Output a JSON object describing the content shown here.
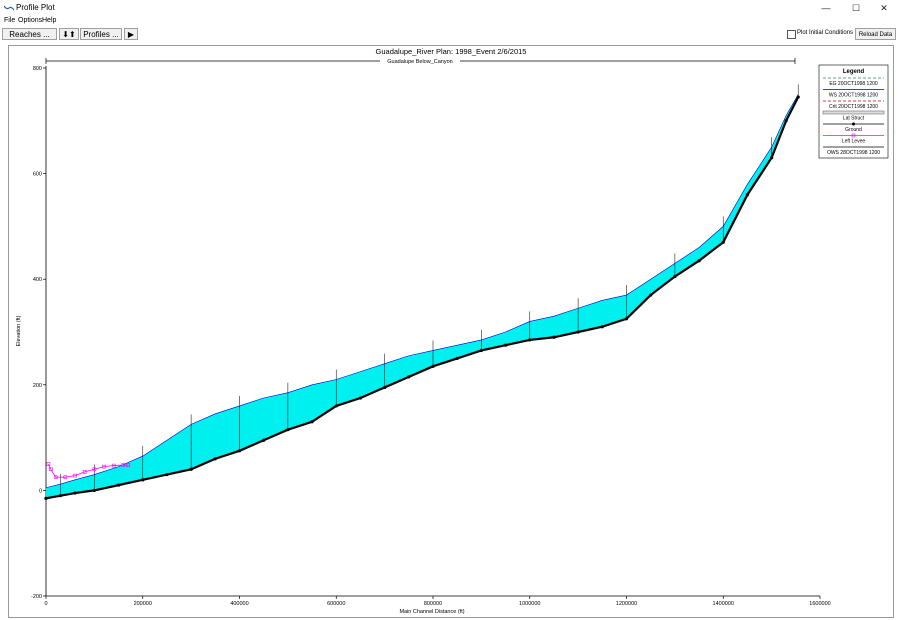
{
  "window": {
    "title": "Profile Plot",
    "minimize": "—",
    "maximize": "☐",
    "close": "✕",
    "icon": "profile-plot-icon"
  },
  "menu": [
    "File",
    "Options",
    "Help"
  ],
  "toolbar": {
    "reaches_label": "Reaches ...",
    "profiles_label": "Profiles ...",
    "arrows_label": "⬇⬆",
    "play_label": "▶",
    "plot_initial_label": "Plot Initial Conditions",
    "plot_initial_checked": false,
    "reload_label": "Reload Data"
  },
  "plot": {
    "header": "Guadalupe_River       Plan: 1998_Event     2/6/2015",
    "reach_label": "Guadalupe Below_Canyon"
  },
  "legend": {
    "title": "Legend",
    "items": [
      {
        "label": "EG  20OCT1998 1200",
        "color": "#2e8b57",
        "style": "dash"
      },
      {
        "label": "WS  20OCT1998 1200",
        "color": "#0000cc",
        "style": "line"
      },
      {
        "label": "Crit  20OCT1998 1200",
        "color": "#cc0000",
        "style": "dash"
      },
      {
        "label": "Lat Struct",
        "color": "#888888",
        "style": "bar"
      },
      {
        "label": "Ground",
        "color": "#000000",
        "style": "dots"
      },
      {
        "label": "Left Levee",
        "color": "#ff00ff",
        "style": "square"
      },
      {
        "label": "OWS  28OCT1998 1200",
        "color": "#000000",
        "style": "line"
      }
    ]
  },
  "chart_data": {
    "type": "line",
    "title": "Guadalupe_River       Plan: 1998_Event     2/6/2015",
    "xlabel": "Main Channel Distance (ft)",
    "ylabel": "Elevation (ft)",
    "xlim": [
      0,
      1600000
    ],
    "ylim": [
      -200,
      800
    ],
    "xticks": [
      0,
      200000,
      400000,
      600000,
      800000,
      1000000,
      1200000,
      1400000,
      1600000
    ],
    "yticks": [
      -200,
      0,
      200,
      400,
      600,
      800
    ],
    "grid": false,
    "legend_position": "top-right",
    "water_fill_color": "#00f0f0",
    "series": [
      {
        "name": "Ground",
        "color": "#000000",
        "x": [
          0,
          30000,
          60000,
          100000,
          150000,
          200000,
          250000,
          300000,
          350000,
          400000,
          450000,
          500000,
          550000,
          600000,
          650000,
          700000,
          750000,
          800000,
          850000,
          900000,
          950000,
          1000000,
          1050000,
          1100000,
          1150000,
          1200000,
          1250000,
          1300000,
          1350000,
          1400000,
          1450000,
          1500000,
          1530000,
          1555000
        ],
        "y": [
          -15,
          -10,
          -5,
          0,
          10,
          20,
          30,
          40,
          60,
          75,
          95,
          115,
          130,
          160,
          175,
          195,
          215,
          235,
          250,
          265,
          275,
          285,
          290,
          300,
          310,
          325,
          370,
          405,
          435,
          470,
          560,
          630,
          700,
          745
        ]
      },
      {
        "name": "WS  20OCT1998 1200",
        "color": "#0000cc",
        "x": [
          0,
          30000,
          60000,
          100000,
          150000,
          200000,
          250000,
          300000,
          350000,
          400000,
          450000,
          500000,
          550000,
          600000,
          650000,
          700000,
          750000,
          800000,
          850000,
          900000,
          950000,
          1000000,
          1050000,
          1100000,
          1150000,
          1200000,
          1250000,
          1300000,
          1350000,
          1400000,
          1450000,
          1500000,
          1530000,
          1555000
        ],
        "y": [
          5,
          12,
          20,
          30,
          45,
          65,
          95,
          125,
          145,
          160,
          175,
          185,
          200,
          210,
          225,
          240,
          255,
          265,
          275,
          285,
          300,
          320,
          330,
          345,
          360,
          370,
          400,
          430,
          460,
          500,
          580,
          650,
          710,
          750
        ]
      },
      {
        "name": "Left Levee",
        "color": "#ff00ff",
        "x": [
          5000,
          10000,
          20000,
          40000,
          60000,
          80000,
          100000,
          120000,
          140000,
          160000,
          170000
        ],
        "y": [
          50,
          40,
          25,
          25,
          28,
          35,
          40,
          45,
          47,
          48,
          48
        ]
      }
    ]
  }
}
